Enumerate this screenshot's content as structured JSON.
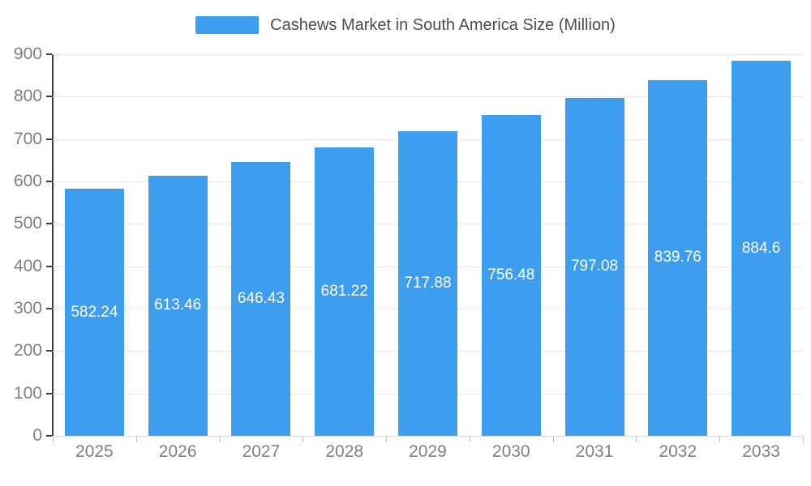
{
  "chart_data": {
    "type": "bar",
    "title": "Cashews Market in South America Size (Million)",
    "categories": [
      "2025",
      "2026",
      "2027",
      "2028",
      "2029",
      "2030",
      "2031",
      "2032",
      "2033"
    ],
    "values": [
      582.24,
      613.46,
      646.43,
      681.22,
      717.88,
      756.48,
      797.08,
      839.76,
      884.6
    ],
    "value_labels": [
      "582.24",
      "613.46",
      "646.43",
      "681.22",
      "717.88",
      "756.48",
      "797.08",
      "839.76",
      "884.6"
    ],
    "xlabel": "",
    "ylabel": "",
    "ylim": [
      0,
      900
    ],
    "yticks": [
      0,
      100,
      200,
      300,
      400,
      500,
      600,
      700,
      800,
      900
    ],
    "grid": true,
    "legend_position": "top",
    "bar_color": "#3d9ef0",
    "label_color": "#ffffff",
    "axis_label_color": "#808080",
    "title_color": "#4d4d4d"
  }
}
